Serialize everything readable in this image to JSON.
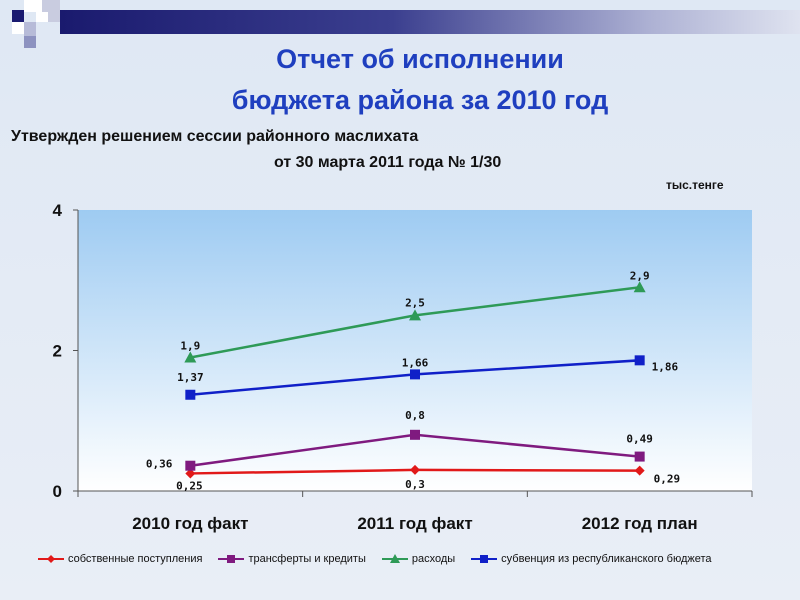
{
  "slide": {
    "title_line1": "Отчет об исполнении",
    "title_line2": "бюджета района за 2010 год",
    "subtitle_line1": "Утвержден решением сессии районного маслихата",
    "subtitle_line2": "от 30 марта 2011 года № 1/30",
    "units": "тыс.тенге"
  },
  "chart_data": {
    "type": "line",
    "categories": [
      "2010 год факт",
      "2011 год факт",
      "2012 год план"
    ],
    "ylim": [
      0,
      4
    ],
    "yticks": [
      "0",
      "2",
      "4"
    ],
    "grid": false,
    "legend_position": "bottom",
    "series": [
      {
        "name": "собственные поступления",
        "values": [
          0.25,
          0.3,
          0.29
        ],
        "labels": [
          "0,25",
          "0,3",
          "0,29"
        ],
        "color": "#e11919",
        "marker": "diamond"
      },
      {
        "name": "трансферты и кредиты",
        "values": [
          0.36,
          0.8,
          0.49
        ],
        "labels": [
          "0,36",
          "0,8",
          "0,49"
        ],
        "color": "#7f1a7f",
        "marker": "square"
      },
      {
        "name": "расходы",
        "values": [
          1.9,
          2.5,
          2.9
        ],
        "labels": [
          "1,9",
          "2,5",
          "2,9"
        ],
        "color": "#2e9a57",
        "marker": "triangle"
      },
      {
        "name": "субвенция из республиканского бюджета",
        "values": [
          1.37,
          1.66,
          1.86
        ],
        "labels": [
          "1,37",
          "1,66",
          "1,86"
        ],
        "color": "#1020c8",
        "marker": "square"
      }
    ]
  }
}
